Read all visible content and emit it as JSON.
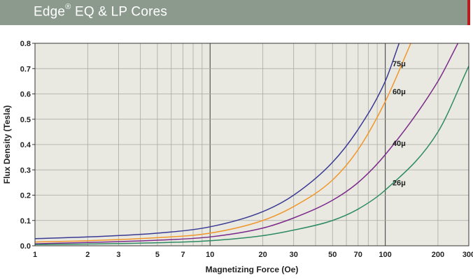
{
  "header": {
    "brand": "Edge",
    "mark": "®",
    "title_rest": " EQ & LP Cores",
    "colors": {
      "banner": "#8c9a8e",
      "accent": "#b81c1c"
    }
  },
  "chart_data": {
    "type": "line",
    "title": "Edge® EQ & LP Cores",
    "xlabel": "Magnetizing Force (Oe)",
    "ylabel": "Flux Density (Tesla)",
    "xscale": "log",
    "xlim": [
      1,
      300
    ],
    "ylim": [
      0,
      0.8
    ],
    "grid": true,
    "xticks": [
      1,
      2,
      3,
      5,
      7,
      10,
      20,
      30,
      50,
      70,
      100,
      200,
      300
    ],
    "xtick_labels": [
      "1",
      "2",
      "3",
      "5",
      "7",
      "10",
      "20",
      "30",
      "50",
      "70",
      "100",
      "200",
      "300"
    ],
    "yticks": [
      0,
      0.1,
      0.2,
      0.3,
      0.4,
      0.5,
      0.6,
      0.7,
      0.8
    ],
    "ytick_labels": [
      "0.0",
      "0.1",
      "0.2",
      "0.3",
      "0.4",
      "0.5",
      "0.6",
      "0.7",
      "0.8"
    ],
    "series": [
      {
        "name": "75μ",
        "color": "#3a3a94",
        "x": [
          1,
          2,
          5,
          10,
          20,
          30,
          50,
          70,
          100,
          120
        ],
        "y": [
          0.028,
          0.035,
          0.05,
          0.075,
          0.135,
          0.2,
          0.33,
          0.46,
          0.65,
          0.8
        ]
      },
      {
        "name": "60μ",
        "color": "#f0962a",
        "x": [
          1,
          2,
          5,
          10,
          20,
          30,
          50,
          70,
          100,
          140
        ],
        "y": [
          0.015,
          0.02,
          0.032,
          0.05,
          0.1,
          0.155,
          0.26,
          0.38,
          0.57,
          0.8
        ]
      },
      {
        "name": "40μ",
        "color": "#7a2a8a",
        "x": [
          1,
          2,
          5,
          10,
          20,
          30,
          50,
          70,
          100,
          200,
          260
        ],
        "y": [
          0.008,
          0.013,
          0.022,
          0.035,
          0.07,
          0.11,
          0.18,
          0.25,
          0.36,
          0.65,
          0.8
        ]
      },
      {
        "name": "26μ",
        "color": "#2e8a62",
        "x": [
          1,
          2,
          5,
          10,
          20,
          30,
          50,
          70,
          100,
          200,
          300
        ],
        "y": [
          0.005,
          0.007,
          0.012,
          0.02,
          0.04,
          0.062,
          0.1,
          0.145,
          0.22,
          0.45,
          0.71
        ]
      }
    ],
    "label_positions": [
      {
        "name": "75μ",
        "x": 110,
        "y": 0.72
      },
      {
        "name": "60μ",
        "x": 110,
        "y": 0.61
      },
      {
        "name": "40μ",
        "x": 110,
        "y": 0.405
      },
      {
        "name": "26μ",
        "x": 110,
        "y": 0.25
      }
    ]
  }
}
